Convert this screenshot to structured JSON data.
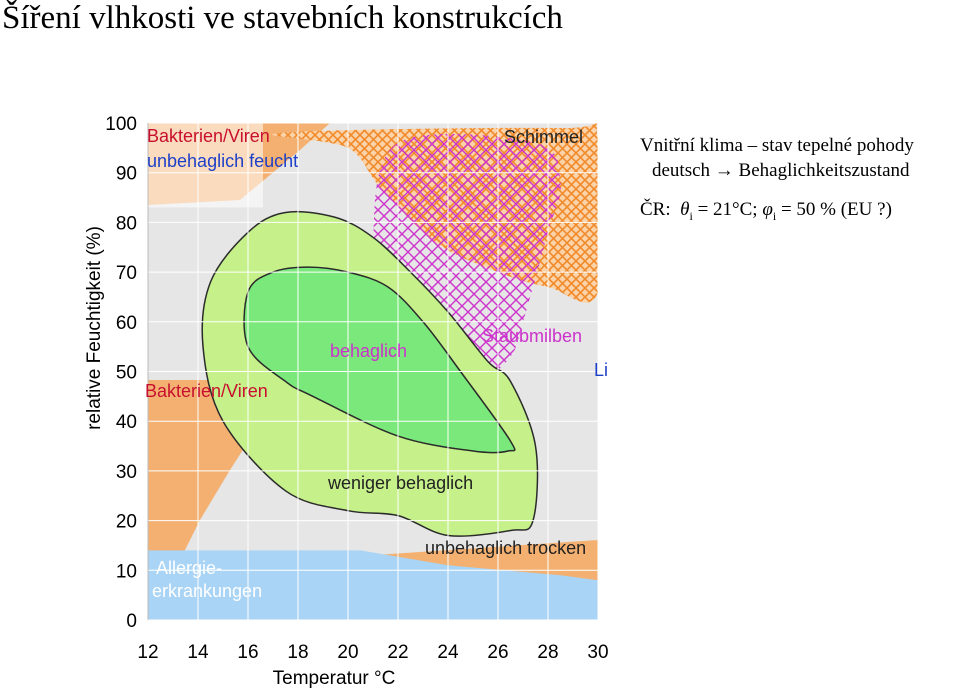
{
  "title": "Šíření vlhkosti ve stavebních konstrukcích",
  "notes": {
    "line1": "Vnitřní klima – stav tepelné pohody",
    "line2_prefix": "deutsch",
    "line2_arrow": "→",
    "line2_suffix": "Behaglichkeitszustand",
    "line3_prefix": "ČR:",
    "theta": "θ",
    "theta_sub": "i",
    "theta_val": " = 21°C; ",
    "phi": "φ",
    "phi_sub": "i",
    "phi_val": " = 50 %  (EU ?)"
  },
  "colors": {
    "orange": "#F5A65B",
    "lightgreen": "#C5F08A",
    "green": "#7AE87A",
    "darkline": "#2B2B2B",
    "magenta": "#CC33CC",
    "blue": "#A9D4F5",
    "plotbg": "#E6E6E6",
    "grid": "#FFFFFF",
    "labelred": "#C8102E",
    "labelblue": "#1E3FC8"
  },
  "chart_data": {
    "type": "area",
    "title": "",
    "xlabel": "Temperatur °C",
    "ylabel": "relative Feuchtigkeit (%)",
    "xlim": [
      12,
      30
    ],
    "ylim": [
      0,
      100
    ],
    "x_ticks": [
      "12",
      "14",
      "16",
      "18",
      "20",
      "22",
      "24",
      "26",
      "28",
      "30"
    ],
    "y_ticks": [
      "0",
      "10",
      "20",
      "30",
      "40",
      "50",
      "60",
      "70",
      "80",
      "90",
      "100"
    ],
    "grid": true,
    "zones": [
      {
        "name": "behaglich",
        "polygon": [
          [
            18.4,
            71
          ],
          [
            20.0,
            70
          ],
          [
            21.6,
            67
          ],
          [
            23.0,
            60
          ],
          [
            24.5,
            50
          ],
          [
            26.5,
            36
          ],
          [
            26.4,
            34
          ],
          [
            25.0,
            34
          ],
          [
            22.0,
            37
          ],
          [
            18.6,
            45
          ],
          [
            17.5,
            48
          ],
          [
            16.0,
            55
          ],
          [
            16.0,
            66
          ],
          [
            17.0,
            70
          ]
        ]
      },
      {
        "name": "weniger behaglich",
        "polygon": [
          [
            17.5,
            82
          ],
          [
            19.5,
            81
          ],
          [
            21.0,
            77
          ],
          [
            22.5,
            70
          ],
          [
            24.0,
            62
          ],
          [
            25.6,
            52
          ],
          [
            26.5,
            48
          ],
          [
            27.5,
            35
          ],
          [
            27.4,
            20
          ],
          [
            26.5,
            18
          ],
          [
            24.0,
            17
          ],
          [
            22.0,
            21
          ],
          [
            20.0,
            22
          ],
          [
            17.5,
            26
          ],
          [
            15.0,
            40
          ],
          [
            14.2,
            55
          ],
          [
            14.5,
            68
          ],
          [
            16.0,
            78
          ]
        ]
      },
      {
        "name": "Schimmel",
        "polygon": [
          [
            17.3,
            98
          ],
          [
            28.5,
            99
          ],
          [
            30.0,
            97
          ],
          [
            30.0,
            66
          ],
          [
            28.0,
            67
          ],
          [
            26.0,
            70
          ],
          [
            23.5,
            76
          ],
          [
            21.3,
            87
          ],
          [
            20.0,
            95
          ]
        ]
      },
      {
        "name": "Staubmilben",
        "polygon": [
          [
            22.0,
            96
          ],
          [
            27.5,
            96
          ],
          [
            28.5,
            88
          ],
          [
            28.0,
            78
          ],
          [
            27.0,
            60
          ],
          [
            26.5,
            53
          ],
          [
            25.4,
            50
          ],
          [
            23.0,
            58
          ],
          [
            21.5,
            65
          ],
          [
            21.0,
            76
          ]
        ]
      },
      {
        "name": "Allergie-erkrankungen",
        "polygon": [
          [
            12.0,
            14
          ],
          [
            20.5,
            14
          ],
          [
            24.0,
            11
          ],
          [
            28.5,
            9
          ],
          [
            30.0,
            8
          ],
          [
            30.0,
            0
          ],
          [
            12.0,
            0
          ]
        ]
      }
    ],
    "annotations": [
      "Bakterien/Viren",
      "unbehaglich feucht",
      "Schimmel",
      "behaglich",
      "Staubmilben",
      "Bakterien/Viren",
      "weniger behaglich",
      "unbehaglich trocken",
      "Allergie-",
      "erkrankungen",
      "Li"
    ]
  }
}
